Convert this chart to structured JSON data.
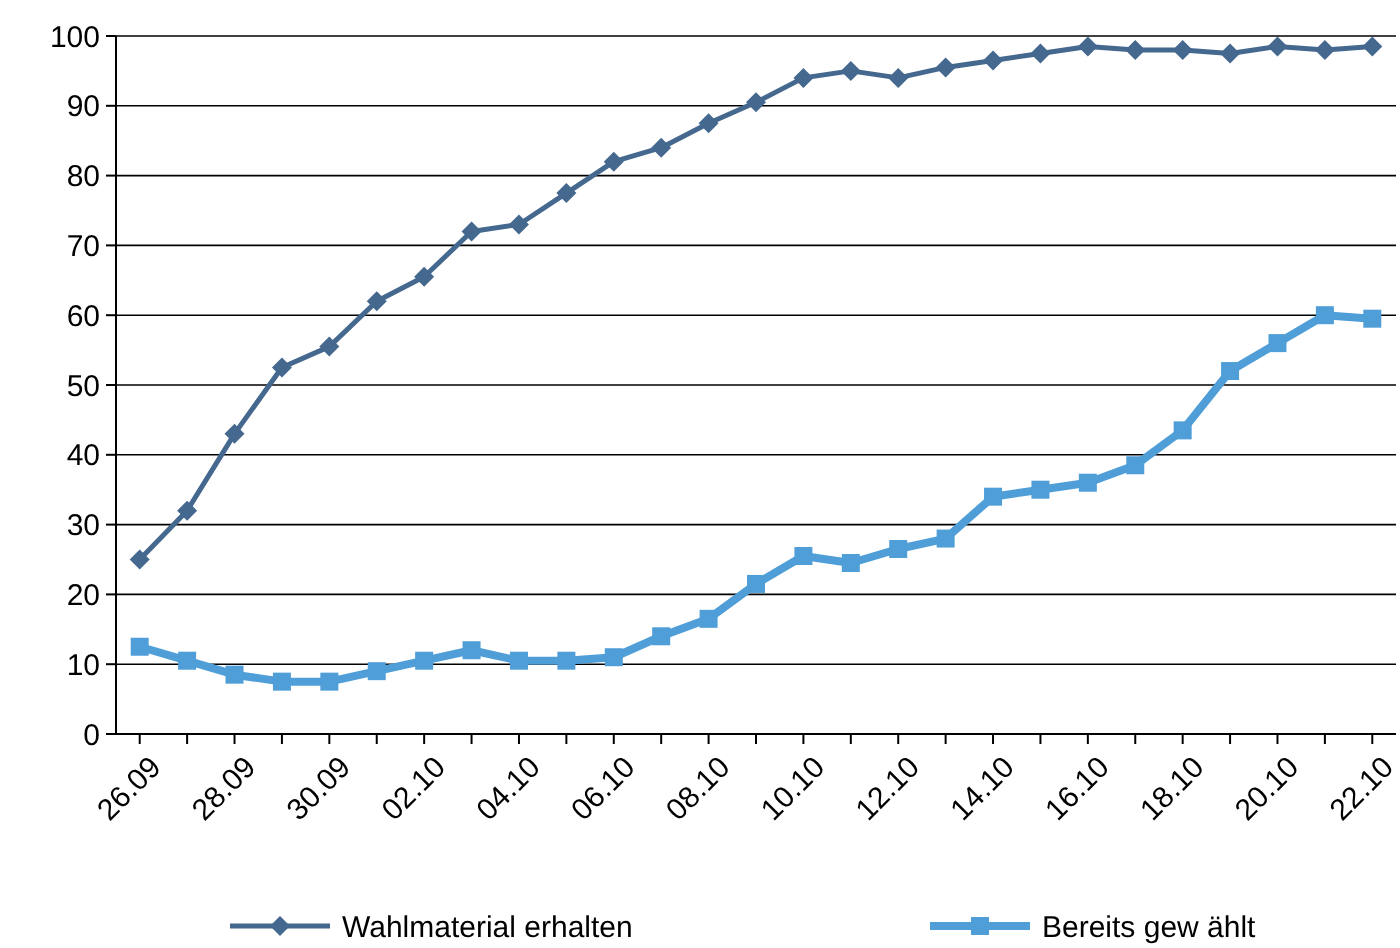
{
  "chart_data": {
    "type": "line",
    "categories": [
      "26.09",
      null,
      "28.09",
      null,
      "30.09",
      null,
      "02.10",
      null,
      "04.10",
      null,
      "06.10",
      null,
      "08.10",
      null,
      "10.10",
      null,
      "12.10",
      null,
      "14.10",
      null,
      "16.10",
      null,
      "18.10",
      null,
      "20.10",
      null,
      "22.10"
    ],
    "series": [
      {
        "name": "Wahlmaterial erhalten",
        "color": "#45688f",
        "marker": "diamond",
        "values": [
          25,
          32,
          43,
          52.5,
          55.5,
          62,
          65.5,
          72,
          73,
          77.5,
          82,
          84,
          87.5,
          90.5,
          94,
          95,
          94,
          95.5,
          96.5,
          97.5,
          98.5,
          98,
          98,
          97.5,
          98.5,
          98,
          98.5
        ]
      },
      {
        "name": "Bereits gew ählt",
        "color": "#4f9ed8",
        "marker": "square",
        "values": [
          12.5,
          10.5,
          8.5,
          7.5,
          7.5,
          9,
          10.5,
          12,
          10.5,
          10.5,
          11,
          14,
          16.5,
          21.5,
          25.5,
          24.5,
          26.5,
          28,
          34,
          35,
          36,
          38.5,
          43.5,
          52,
          56,
          60,
          59.5
        ]
      }
    ],
    "ylim": [
      0,
      100
    ],
    "yticks": [
      0,
      10,
      20,
      30,
      40,
      50,
      60,
      70,
      80,
      90,
      100
    ],
    "grid": "y",
    "legend": "bottom"
  }
}
